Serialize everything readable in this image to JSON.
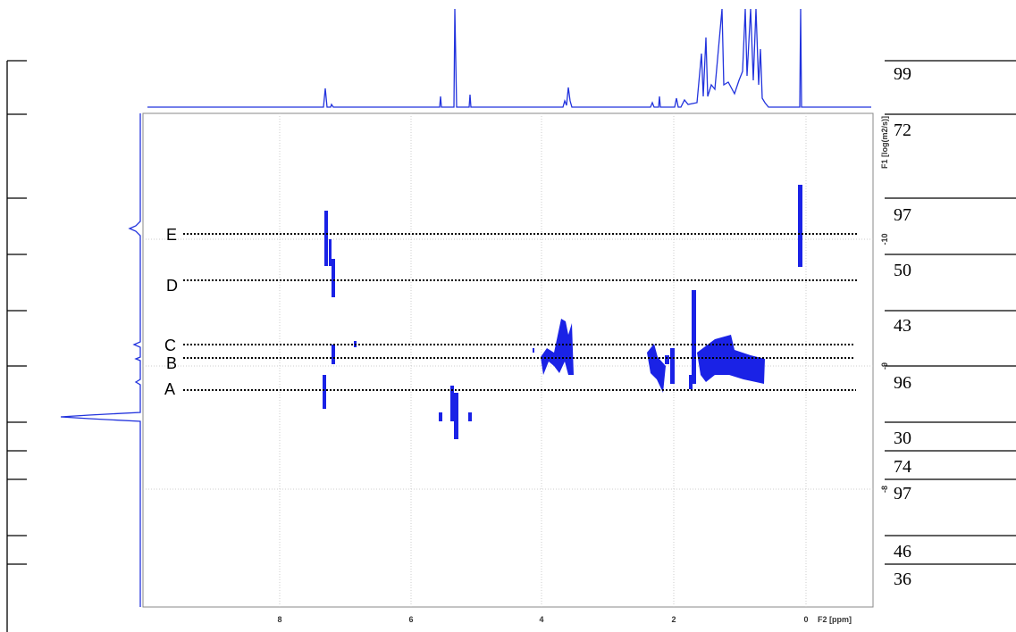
{
  "f2_axis": {
    "ticks": [
      "8",
      "6",
      "4",
      "2",
      "0"
    ],
    "label": "F2 [ppm]"
  },
  "f1_axis": {
    "ticks": [
      "-10",
      "-9",
      "-8"
    ],
    "label": "F1 [log(m2/s)]"
  },
  "lines": [
    "E",
    "D",
    "C",
    "B",
    "A"
  ],
  "side_numbers": [
    "99",
    "72",
    "97",
    "50",
    "43",
    "96",
    "30",
    "74",
    "97",
    "46",
    "36"
  ]
}
